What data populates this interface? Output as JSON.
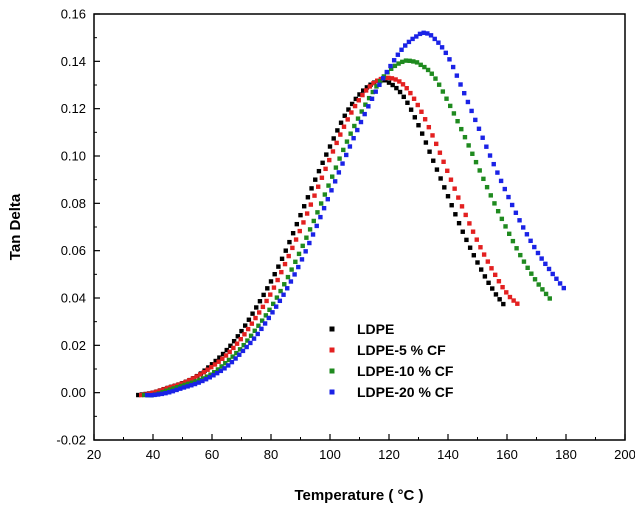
{
  "chart_data": {
    "type": "scatter",
    "title": "",
    "xlabel": "Temperature ( °C )",
    "ylabel": "Tan Delta",
    "xlim": [
      20,
      200
    ],
    "ylim": [
      -0.02,
      0.16
    ],
    "xticks": [
      20,
      40,
      60,
      80,
      100,
      120,
      140,
      160,
      180,
      200
    ],
    "xtick_labels": [
      "20",
      "40",
      "60",
      "80",
      "100",
      "120",
      "140",
      "160",
      "180",
      "200"
    ],
    "yticks": [
      -0.02,
      0.0,
      0.02,
      0.04,
      0.06,
      0.08,
      0.1,
      0.12,
      0.14,
      0.16
    ],
    "ytick_labels": [
      "-0.02",
      "0.00",
      "0.02",
      "0.04",
      "0.06",
      "0.08",
      "0.10",
      "0.12",
      "0.14",
      "0.16"
    ],
    "grid": false,
    "legend_position": "bottom-center",
    "series": [
      {
        "name": "LDPE",
        "color": "#000000",
        "x": [
          35,
          40,
          45,
          50,
          55,
          60,
          65,
          70,
          75,
          80,
          85,
          90,
          95,
          100,
          105,
          110,
          115,
          118,
          120,
          125,
          130,
          135,
          140,
          145,
          150,
          155,
          159
        ],
        "y": [
          -0.001,
          0.0,
          0.002,
          0.004,
          0.007,
          0.012,
          0.018,
          0.026,
          0.036,
          0.047,
          0.06,
          0.075,
          0.09,
          0.104,
          0.117,
          0.126,
          0.131,
          0.132,
          0.131,
          0.125,
          0.113,
          0.098,
          0.083,
          0.068,
          0.055,
          0.044,
          0.037
        ]
      },
      {
        "name": "LDPE-5 % CF",
        "color": "#e32020",
        "x": [
          36,
          40,
          45,
          50,
          55,
          60,
          65,
          70,
          75,
          80,
          85,
          90,
          95,
          100,
          105,
          110,
          115,
          120,
          125,
          130,
          135,
          140,
          145,
          150,
          155,
          160,
          164
        ],
        "y": [
          -0.001,
          0.0,
          0.002,
          0.004,
          0.007,
          0.011,
          0.016,
          0.023,
          0.032,
          0.042,
          0.055,
          0.069,
          0.084,
          0.099,
          0.113,
          0.124,
          0.131,
          0.133,
          0.13,
          0.121,
          0.108,
          0.093,
          0.078,
          0.064,
          0.052,
          0.042,
          0.037
        ]
      },
      {
        "name": "LDPE-10 % CF",
        "color": "#1f8a1f",
        "x": [
          37,
          40,
          45,
          50,
          55,
          60,
          65,
          70,
          75,
          80,
          85,
          90,
          95,
          100,
          105,
          110,
          115,
          120,
          125,
          128,
          130,
          135,
          140,
          145,
          150,
          155,
          160,
          165,
          170,
          175
        ],
        "y": [
          -0.001,
          -0.001,
          0.001,
          0.003,
          0.005,
          0.008,
          0.013,
          0.019,
          0.027,
          0.036,
          0.047,
          0.06,
          0.074,
          0.089,
          0.104,
          0.117,
          0.128,
          0.136,
          0.14,
          0.14,
          0.139,
          0.134,
          0.123,
          0.11,
          0.096,
          0.082,
          0.069,
          0.057,
          0.047,
          0.039
        ]
      },
      {
        "name": "LDPE-20 % CF",
        "color": "#1a22e6",
        "x": [
          38,
          40,
          45,
          50,
          55,
          60,
          65,
          70,
          75,
          80,
          85,
          90,
          95,
          100,
          105,
          110,
          115,
          120,
          125,
          130,
          132,
          135,
          140,
          145,
          150,
          155,
          160,
          165,
          170,
          175,
          180
        ],
        "y": [
          -0.001,
          -0.001,
          0.0,
          0.002,
          0.004,
          0.007,
          0.011,
          0.017,
          0.024,
          0.033,
          0.043,
          0.055,
          0.069,
          0.084,
          0.099,
          0.113,
          0.126,
          0.137,
          0.146,
          0.151,
          0.152,
          0.15,
          0.142,
          0.128,
          0.113,
          0.098,
          0.084,
          0.071,
          0.06,
          0.051,
          0.043
        ]
      }
    ]
  }
}
